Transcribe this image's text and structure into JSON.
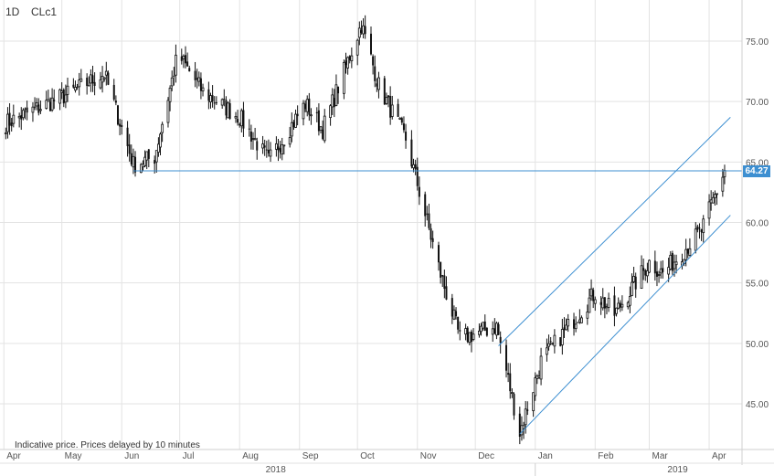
{
  "header": {
    "interval": "1D",
    "symbol": "CLc1"
  },
  "note": "Indicative price. Prices delayed by 10 minutes",
  "chart_data": {
    "type": "candlestick",
    "y_ticks": [
      "75.00",
      "70.00",
      "65.00",
      "60.00",
      "55.00",
      "50.00",
      "45.00"
    ],
    "ylim": [
      41.5,
      78
    ],
    "month_labels": [
      "Apr",
      "May",
      "Jun",
      "Jul",
      "Aug",
      "Sep",
      "Oct",
      "Nov",
      "Dec",
      "Jan",
      "Feb",
      "Mar",
      "Apr"
    ],
    "year_labels": [
      "2018",
      "2019"
    ],
    "current_price": "64.27",
    "grid": true,
    "colors": {
      "candle": "#111111",
      "trendline": "#3d8fd1",
      "grid": "#e3e3e3",
      "price_tag": "#3d8fd1"
    },
    "series": [
      {
        "start": "2018-04-02",
        "end": "2018-05-04",
        "from": 68.2,
        "to": 70.6
      },
      {
        "start": "2018-05-04",
        "end": "2018-05-23",
        "from": 70.6,
        "to": 72.3
      },
      {
        "start": "2018-05-23",
        "end": "2018-06-07",
        "from": 72.3,
        "to": 64.8
      },
      {
        "start": "2018-06-07",
        "end": "2018-06-18",
        "from": 64.8,
        "to": 65.4
      },
      {
        "start": "2018-06-18",
        "end": "2018-06-30",
        "from": 65.4,
        "to": 73.9
      },
      {
        "start": "2018-06-30",
        "end": "2018-07-13",
        "from": 73.9,
        "to": 70.8
      },
      {
        "start": "2018-07-13",
        "end": "2018-08-01",
        "from": 70.8,
        "to": 68.7
      },
      {
        "start": "2018-08-01",
        "end": "2018-08-16",
        "from": 68.7,
        "to": 65.1
      },
      {
        "start": "2018-08-16",
        "end": "2018-09-04",
        "from": 65.1,
        "to": 69.8
      },
      {
        "start": "2018-09-04",
        "end": "2018-09-13",
        "from": 69.8,
        "to": 67.7
      },
      {
        "start": "2018-09-13",
        "end": "2018-10-03",
        "from": 67.7,
        "to": 76.4
      },
      {
        "start": "2018-10-03",
        "end": "2018-10-12",
        "from": 76.4,
        "to": 71.3
      },
      {
        "start": "2018-10-12",
        "end": "2018-10-26",
        "from": 71.3,
        "to": 66.9
      },
      {
        "start": "2018-10-26",
        "end": "2018-11-13",
        "from": 66.9,
        "to": 55.7
      },
      {
        "start": "2018-11-13",
        "end": "2018-11-23",
        "from": 55.7,
        "to": 50.4
      },
      {
        "start": "2018-11-23",
        "end": "2018-12-12",
        "from": 50.4,
        "to": 51.4
      },
      {
        "start": "2018-12-12",
        "end": "2018-12-24",
        "from": 51.4,
        "to": 42.6
      },
      {
        "start": "2018-12-24",
        "end": "2019-01-04",
        "from": 42.6,
        "to": 48.5
      },
      {
        "start": "2019-01-04",
        "end": "2019-02-01",
        "from": 48.5,
        "to": 54.2
      },
      {
        "start": "2019-02-01",
        "end": "2019-02-11",
        "from": 54.2,
        "to": 52.4
      },
      {
        "start": "2019-02-11",
        "end": "2019-03-01",
        "from": 52.4,
        "to": 56.7
      },
      {
        "start": "2019-03-01",
        "end": "2019-03-08",
        "from": 56.7,
        "to": 55.8
      },
      {
        "start": "2019-03-08",
        "end": "2019-03-28",
        "from": 55.8,
        "to": 59.3
      },
      {
        "start": "2019-03-28",
        "end": "2019-04-09",
        "from": 59.3,
        "to": 64.3
      }
    ],
    "horizontal_line": {
      "value": 64.27,
      "from_date": "2018-06-07"
    },
    "channel": {
      "upper": {
        "from": {
          "date": "2018-12-13",
          "value": 49.8
        },
        "to": {
          "date": "2019-04-12",
          "value": 68.7
        }
      },
      "lower": {
        "from": {
          "date": "2018-12-24",
          "value": 42.5
        },
        "to": {
          "date": "2019-04-12",
          "value": 60.6
        }
      }
    }
  }
}
